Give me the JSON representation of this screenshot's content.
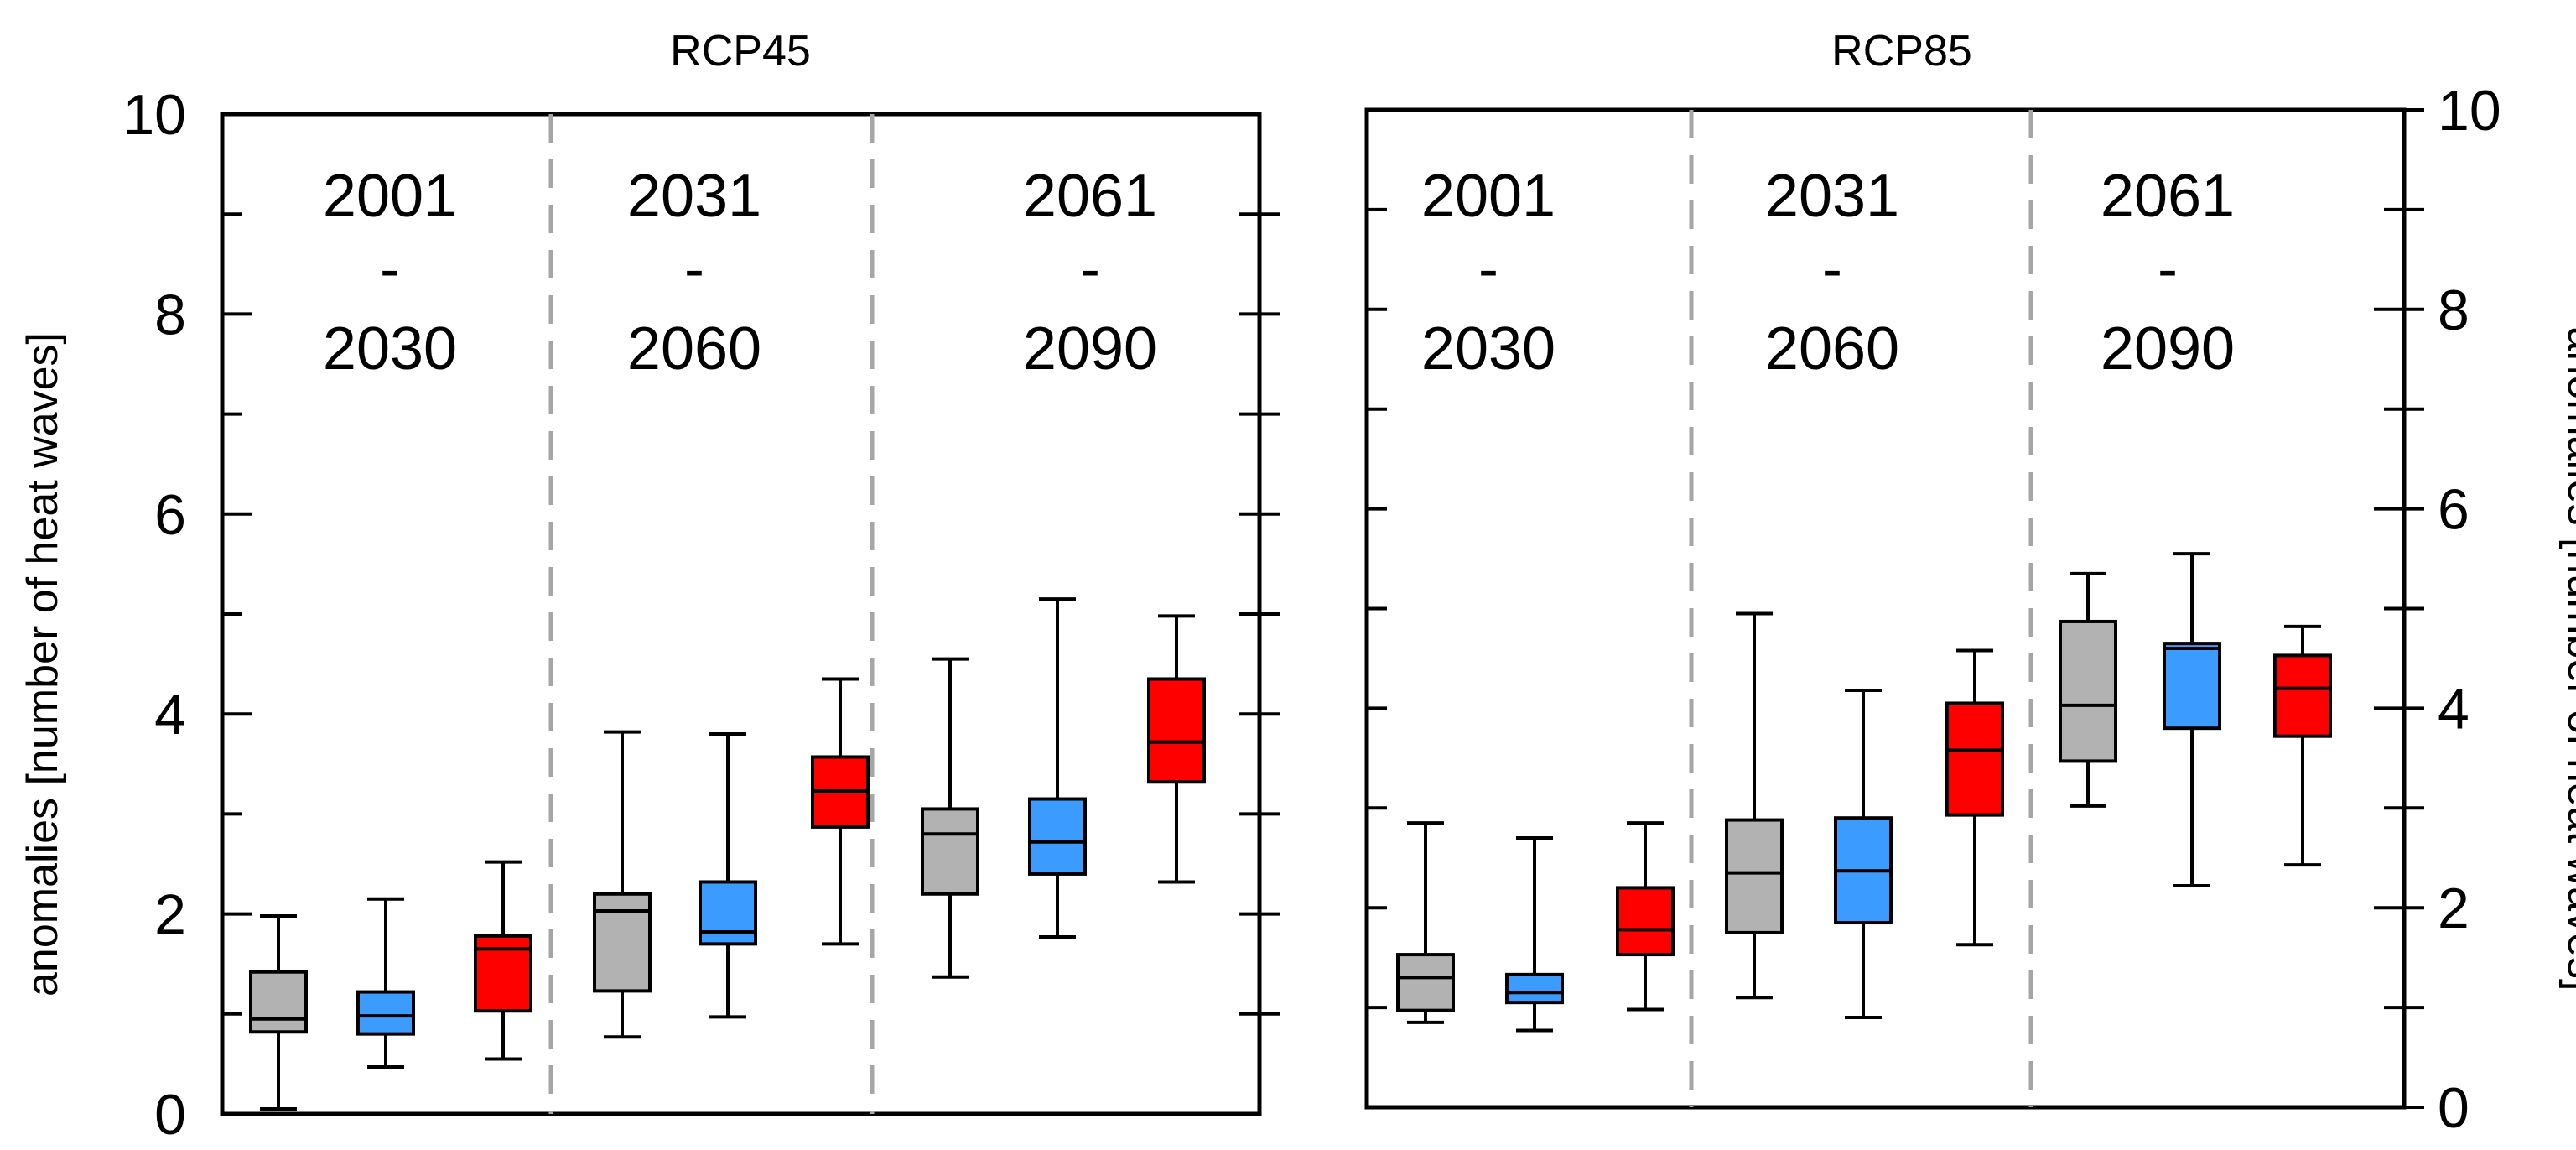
{
  "colors": {
    "gray": "#b2b2b2",
    "blue": "#3b9bff",
    "red": "#ff0000",
    "divider": "#a6a6a6"
  },
  "chart_data": [
    {
      "type": "box",
      "title": "RCP45",
      "ylabel": "anomalies [number of heat waves]",
      "ylabel_side": "left",
      "ylim": [
        0,
        10
      ],
      "yticks": [
        "0",
        "2",
        "4",
        "6",
        "8",
        "10"
      ],
      "periods": [
        {
          "start": "2001",
          "sep": "-",
          "end": "2030"
        },
        {
          "start": "2031",
          "sep": "-",
          "end": "2060"
        },
        {
          "start": "2061",
          "sep": "-",
          "end": "2090"
        }
      ],
      "boxes": [
        {
          "period": 0,
          "color": "gray",
          "min": 0.05,
          "q1": 0.82,
          "median": 0.95,
          "q3": 1.42,
          "max": 1.98
        },
        {
          "period": 0,
          "color": "blue",
          "min": 0.47,
          "q1": 0.8,
          "median": 0.98,
          "q3": 1.22,
          "max": 2.15
        },
        {
          "period": 0,
          "color": "red",
          "min": 0.55,
          "q1": 1.03,
          "median": 1.65,
          "q3": 1.78,
          "max": 2.52
        },
        {
          "period": 1,
          "color": "gray",
          "min": 0.77,
          "q1": 1.23,
          "median": 2.03,
          "q3": 2.2,
          "max": 3.82
        },
        {
          "period": 1,
          "color": "blue",
          "min": 0.97,
          "q1": 1.7,
          "median": 1.82,
          "q3": 2.32,
          "max": 3.8
        },
        {
          "period": 1,
          "color": "red",
          "min": 1.7,
          "q1": 2.87,
          "median": 3.23,
          "q3": 3.57,
          "max": 4.35
        },
        {
          "period": 2,
          "color": "gray",
          "min": 1.37,
          "q1": 2.2,
          "median": 2.8,
          "q3": 3.05,
          "max": 4.55
        },
        {
          "period": 2,
          "color": "blue",
          "min": 1.77,
          "q1": 2.4,
          "median": 2.72,
          "q3": 3.15,
          "max": 5.15
        },
        {
          "period": 2,
          "color": "red",
          "min": 2.32,
          "q1": 3.32,
          "median": 3.72,
          "q3": 4.35,
          "max": 4.98
        }
      ]
    },
    {
      "type": "box",
      "title": "RCP85",
      "ylabel": "anomalies [number of heat waves]",
      "ylabel_side": "right",
      "ylim": [
        0,
        10
      ],
      "yticks": [
        "0",
        "2",
        "4",
        "6",
        "8",
        "10"
      ],
      "periods": [
        {
          "start": "2001",
          "sep": "-",
          "end": "2030"
        },
        {
          "start": "2031",
          "sep": "-",
          "end": "2060"
        },
        {
          "start": "2061",
          "sep": "-",
          "end": "2090"
        }
      ],
      "boxes": [
        {
          "period": 0,
          "color": "gray",
          "min": 0.85,
          "q1": 0.97,
          "median": 1.3,
          "q3": 1.53,
          "max": 2.85
        },
        {
          "period": 0,
          "color": "blue",
          "min": 0.77,
          "q1": 1.05,
          "median": 1.15,
          "q3": 1.33,
          "max": 2.7
        },
        {
          "period": 0,
          "color": "red",
          "min": 0.98,
          "q1": 1.53,
          "median": 1.78,
          "q3": 2.2,
          "max": 2.85
        },
        {
          "period": 1,
          "color": "gray",
          "min": 1.1,
          "q1": 1.75,
          "median": 2.35,
          "q3": 2.88,
          "max": 4.95
        },
        {
          "period": 1,
          "color": "blue",
          "min": 0.9,
          "q1": 1.85,
          "median": 2.37,
          "q3": 2.9,
          "max": 4.18
        },
        {
          "period": 1,
          "color": "red",
          "min": 1.63,
          "q1": 2.93,
          "median": 3.58,
          "q3": 4.05,
          "max": 4.58
        },
        {
          "period": 2,
          "color": "gray",
          "min": 3.02,
          "q1": 3.47,
          "median": 4.03,
          "q3": 4.87,
          "max": 5.35
        },
        {
          "period": 2,
          "color": "blue",
          "min": 2.22,
          "q1": 3.8,
          "median": 4.6,
          "q3": 4.65,
          "max": 5.55
        },
        {
          "period": 2,
          "color": "red",
          "min": 2.43,
          "q1": 3.72,
          "median": 4.2,
          "q3": 4.53,
          "max": 4.82
        }
      ]
    }
  ]
}
